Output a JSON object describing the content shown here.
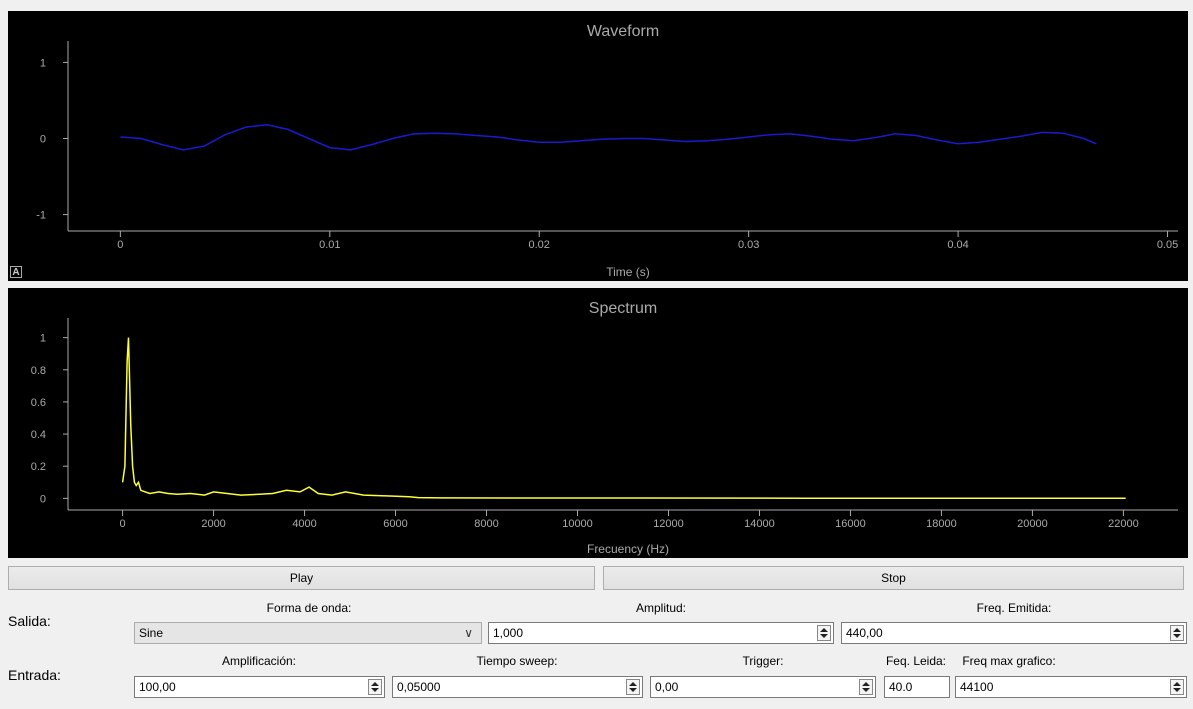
{
  "waveform": {
    "title": "Waveform",
    "xlabel": "Time (s)",
    "autoscale_label": "A",
    "colors": {
      "background": "#000000",
      "trace": "#1a1ad0",
      "axis": "#aaaaaa"
    }
  },
  "spectrum": {
    "title": "Spectrum",
    "xlabel": "Frecuency (Hz)",
    "colors": {
      "background": "#000000",
      "trace": "#ffff33",
      "axis": "#aaaaaa"
    }
  },
  "chart_data": [
    {
      "type": "line",
      "title": "Waveform",
      "xlabel": "Time (s)",
      "ylabel": "",
      "xlim": [
        -0.0025,
        0.0505
      ],
      "ylim": [
        -1.15,
        1.15
      ],
      "xticks": [
        "0",
        "0.01",
        "0.02",
        "0.03",
        "0.04",
        "0.05"
      ],
      "yticks": [
        "1",
        "0",
        "-1"
      ],
      "grid": false,
      "series": [
        {
          "x": [
            0,
            0.001,
            0.002,
            0.003,
            0.004,
            0.005,
            0.006,
            0.007,
            0.008,
            0.009,
            0.01,
            0.011,
            0.012,
            0.013,
            0.014,
            0.015,
            0.016,
            0.017,
            0.018,
            0.019,
            0.02,
            0.021,
            0.022,
            0.023,
            0.024,
            0.025,
            0.026,
            0.027,
            0.028,
            0.029,
            0.03,
            0.031,
            0.032,
            0.033,
            0.034,
            0.035,
            0.036,
            0.037,
            0.038,
            0.039,
            0.04,
            0.041,
            0.042,
            0.043,
            0.044,
            0.045,
            0.046,
            0.0466
          ],
          "y": [
            0.02,
            0.0,
            -0.08,
            -0.15,
            -0.1,
            0.05,
            0.15,
            0.18,
            0.12,
            0.0,
            -0.12,
            -0.15,
            -0.08,
            0.0,
            0.06,
            0.07,
            0.06,
            0.04,
            0.02,
            -0.02,
            -0.05,
            -0.05,
            -0.03,
            -0.01,
            0.0,
            0.0,
            -0.02,
            -0.04,
            -0.03,
            -0.01,
            0.02,
            0.05,
            0.06,
            0.03,
            -0.01,
            -0.03,
            0.01,
            0.06,
            0.04,
            -0.02,
            -0.07,
            -0.05,
            -0.01,
            0.03,
            0.08,
            0.07,
            0.0,
            -0.07
          ]
        }
      ]
    },
    {
      "type": "line",
      "title": "Spectrum",
      "xlabel": "Frecuency (Hz)",
      "ylabel": "",
      "xlim": [
        -1200,
        23200
      ],
      "ylim": [
        -0.06,
        1.06
      ],
      "xticks": [
        "0",
        "2000",
        "4000",
        "6000",
        "8000",
        "10000",
        "12000",
        "14000",
        "16000",
        "18000",
        "20000",
        "22000"
      ],
      "yticks": [
        "1",
        "0.8",
        "0.6",
        "0.4",
        "0.2",
        "0"
      ],
      "grid": false,
      "series": [
        {
          "x": [
            0,
            50,
            100,
            130,
            150,
            180,
            220,
            260,
            300,
            350,
            400,
            500,
            600,
            800,
            1000,
            1200,
            1500,
            1800,
            2000,
            2300,
            2600,
            3000,
            3300,
            3600,
            3900,
            4100,
            4300,
            4600,
            4900,
            5300,
            5800,
            6300,
            6500,
            7000,
            10000,
            15000,
            20000,
            22050
          ],
          "y": [
            0.1,
            0.2,
            0.85,
            1.0,
            0.78,
            0.45,
            0.2,
            0.1,
            0.08,
            0.1,
            0.05,
            0.04,
            0.03,
            0.04,
            0.03,
            0.025,
            0.03,
            0.02,
            0.04,
            0.03,
            0.02,
            0.025,
            0.03,
            0.05,
            0.04,
            0.07,
            0.03,
            0.02,
            0.04,
            0.02,
            0.015,
            0.01,
            0.005,
            0.003,
            0.002,
            0.001,
            0.001,
            0.001
          ]
        }
      ]
    }
  ],
  "controls": {
    "play_label": "Play",
    "stop_label": "Stop",
    "salida": {
      "label": "Salida:",
      "forma_de_onda": {
        "label": "Forma de onda:",
        "value": "Sine",
        "chevron": "∨"
      },
      "amplitud": {
        "label": "Amplitud:",
        "value": "1,000"
      },
      "freq_emitida": {
        "label": "Freq. Emitida:",
        "value": "440,00"
      }
    },
    "entrada": {
      "label": "Entrada:",
      "amplificacion": {
        "label": "Amplificación:",
        "value": "100,00"
      },
      "tiempo_sweep": {
        "label": "Tiempo sweep:",
        "value": "0,05000"
      },
      "trigger": {
        "label": "Trigger:",
        "value": "0,00"
      },
      "feq_leida": {
        "label": "Feq. Leida:",
        "value": "40.0"
      },
      "freq_max_grafico": {
        "label": "Freq max grafico:",
        "value": "44100"
      }
    }
  }
}
